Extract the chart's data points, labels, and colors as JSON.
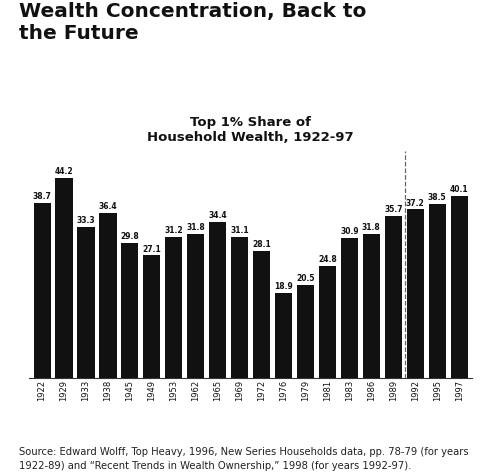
{
  "years": [
    "1922",
    "1929",
    "1933",
    "1938",
    "1945",
    "1949",
    "1953",
    "1962",
    "1965",
    "1969",
    "1972",
    "1976",
    "1979",
    "1981",
    "1983",
    "1986",
    "1989",
    "1992",
    "1995",
    "1997"
  ],
  "values": [
    38.7,
    44.2,
    33.3,
    36.4,
    29.8,
    27.1,
    31.2,
    31.8,
    34.4,
    31.1,
    28.1,
    18.9,
    20.5,
    24.8,
    30.9,
    31.8,
    35.7,
    37.2,
    38.5,
    40.1
  ],
  "bar_color": "#111111",
  "title_main": "Wealth Concentration, Back to\nthe Future",
  "subtitle": "Top 1% Share of\nHousehold Wealth, 1922-97",
  "source_text": "Source: Edward Wolff, Top Heavy, 1996, New Series Households data, pp. 78-79 (for years\n1922-89) and “Recent Trends in Wealth Ownership,” 1998 (for years 1992-97).",
  "ylim": [
    0,
    50
  ],
  "bar_label_fontsize": 5.5,
  "tick_fontsize": 6.0,
  "title_fontsize": 14.5,
  "subtitle_fontsize": 9.5,
  "source_fontsize": 7.2,
  "background_color": "#ffffff",
  "dashed_line_color": "#666666"
}
